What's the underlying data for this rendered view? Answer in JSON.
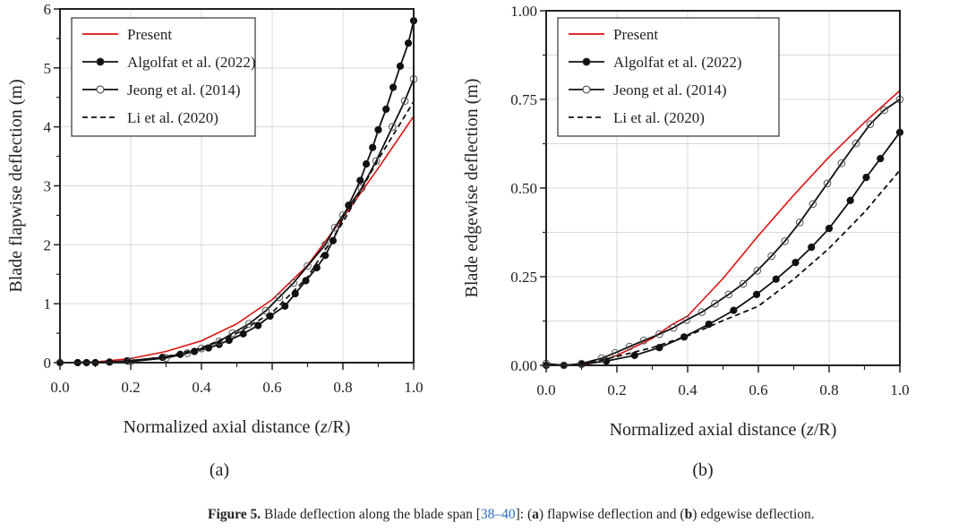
{
  "chart_data": [
    {
      "type": "line",
      "panel_label": "(a)",
      "xlabel": "Normalized axial distance (z/R)",
      "xlabel_parts": [
        "Normalized axial distance (",
        "z",
        "/R)"
      ],
      "ylabel": "Blade flapwise deflection (m)",
      "xlim": [
        0,
        1
      ],
      "ylim": [
        0,
        6
      ],
      "xticks": [
        "0.0",
        "0.2",
        "0.4",
        "0.6",
        "0.8",
        "1.0"
      ],
      "yticks": [
        "0",
        "1",
        "2",
        "3",
        "4",
        "5",
        "6"
      ],
      "grid": true,
      "legend_position": "top-left",
      "series": [
        {
          "name": "Present",
          "color": "#e01010",
          "style": "solid",
          "marker": "none",
          "x": [
            0,
            0.1,
            0.2,
            0.3,
            0.4,
            0.5,
            0.6,
            0.7,
            0.8,
            0.9,
            1.0
          ],
          "y": [
            0,
            0.01,
            0.07,
            0.19,
            0.37,
            0.66,
            1.07,
            1.65,
            2.46,
            3.3,
            4.18
          ]
        },
        {
          "name": "Algolfat  et al. (2022)",
          "color": "#111111",
          "style": "solid",
          "marker": "filled-circle",
          "x": [
            0,
            0.05,
            0.075,
            0.1,
            0.14,
            0.19,
            0.29,
            0.34,
            0.38,
            0.42,
            0.45,
            0.478,
            0.518,
            0.56,
            0.594,
            0.636,
            0.665,
            0.695,
            0.726,
            0.75,
            0.772,
            0.816,
            0.849,
            0.866,
            0.884,
            0.9,
            0.922,
            0.942,
            0.962,
            0.985,
            1.0
          ],
          "y": [
            0,
            0,
            0,
            0,
            0.01,
            0.03,
            0.09,
            0.14,
            0.19,
            0.25,
            0.31,
            0.38,
            0.49,
            0.63,
            0.79,
            0.96,
            1.17,
            1.39,
            1.61,
            1.82,
            2.07,
            2.67,
            3.09,
            3.37,
            3.65,
            3.95,
            4.3,
            4.67,
            5.03,
            5.42,
            5.8
          ]
        },
        {
          "name": "Jeong et al. (2014)",
          "color": "#111111",
          "style": "solid",
          "marker": "open-circle",
          "x": [
            0,
            0.2,
            0.3,
            0.36,
            0.4,
            0.45,
            0.488,
            0.535,
            0.582,
            0.62,
            0.66,
            0.7,
            0.75,
            0.777,
            0.8,
            0.853,
            0.894,
            0.94,
            0.975,
            1.0
          ],
          "y": [
            0,
            0.02,
            0.08,
            0.16,
            0.24,
            0.36,
            0.5,
            0.66,
            0.88,
            1.11,
            1.35,
            1.64,
            2.0,
            2.29,
            2.5,
            2.96,
            3.42,
            4.0,
            4.44,
            4.81
          ]
        },
        {
          "name": "Li et al. (2020)",
          "color": "#111111",
          "style": "dashed",
          "marker": "none",
          "x": [
            0,
            0.1,
            0.2,
            0.3,
            0.4,
            0.5,
            0.6,
            0.7,
            0.8,
            0.9,
            1.0
          ],
          "y": [
            0,
            0,
            0.03,
            0.1,
            0.25,
            0.5,
            0.85,
            1.45,
            2.38,
            3.45,
            4.43
          ]
        }
      ]
    },
    {
      "type": "line",
      "panel_label": "(b)",
      "xlabel": "Normalized axial distance (z/R)",
      "xlabel_parts": [
        "Normalized axial distance (",
        "z",
        "/R)"
      ],
      "ylabel": "Blade edgewise deflection (m)",
      "xlim": [
        0,
        1
      ],
      "ylim": [
        0,
        1
      ],
      "xticks": [
        "0.0",
        "0.2",
        "0.4",
        "0.6",
        "0.8",
        "1.0"
      ],
      "yticks": [
        "0.00",
        "0.25",
        "0.50",
        "0.75",
        "1.00"
      ],
      "grid": true,
      "legend_position": "top-left",
      "series": [
        {
          "name": "Present",
          "color": "#e01010",
          "style": "solid",
          "marker": "none",
          "x": [
            0,
            0.1,
            0.15,
            0.2,
            0.3,
            0.354,
            0.4,
            0.5,
            0.6,
            0.7,
            0.8,
            0.9,
            1.0
          ],
          "y": [
            0,
            0,
            0.01,
            0.028,
            0.076,
            0.114,
            0.139,
            0.245,
            0.366,
            0.48,
            0.588,
            0.685,
            0.775
          ]
        },
        {
          "name": "Algolfat  et al. (2022)",
          "color": "#111111",
          "style": "solid",
          "marker": "filled-circle",
          "x": [
            0,
            0.05,
            0.1,
            0.17,
            0.25,
            0.32,
            0.39,
            0.46,
            0.53,
            0.595,
            0.65,
            0.705,
            0.75,
            0.8,
            0.86,
            0.905,
            0.945,
            1.0
          ],
          "y": [
            0,
            0,
            0.003,
            0.012,
            0.028,
            0.05,
            0.08,
            0.116,
            0.155,
            0.2,
            0.243,
            0.29,
            0.333,
            0.386,
            0.465,
            0.53,
            0.583,
            0.657
          ]
        },
        {
          "name": "Jeong et al. (2014)",
          "color": "#111111",
          "style": "solid",
          "marker": "open-circle",
          "x": [
            0,
            0.05,
            0.1,
            0.157,
            0.195,
            0.236,
            0.276,
            0.32,
            0.36,
            0.397,
            0.44,
            0.477,
            0.516,
            0.557,
            0.597,
            0.637,
            0.675,
            0.717,
            0.754,
            0.795,
            0.835,
            0.876,
            0.916,
            0.956,
            1.0
          ],
          "y": [
            0.005,
            0,
            0.005,
            0.02,
            0.035,
            0.053,
            0.07,
            0.088,
            0.106,
            0.128,
            0.15,
            0.174,
            0.2,
            0.23,
            0.267,
            0.308,
            0.35,
            0.403,
            0.455,
            0.513,
            0.57,
            0.626,
            0.68,
            0.72,
            0.75
          ]
        },
        {
          "name": "Li et al. (2020)",
          "color": "#111111",
          "style": "dashed",
          "marker": "none",
          "x": [
            0,
            0.1,
            0.2,
            0.3,
            0.4,
            0.5,
            0.6,
            0.7,
            0.8,
            0.9,
            1.0
          ],
          "y": [
            0,
            0.002,
            0.025,
            0.05,
            0.083,
            0.126,
            0.167,
            0.243,
            0.33,
            0.432,
            0.55
          ]
        }
      ]
    }
  ],
  "caption": {
    "label": "Figure 5.",
    "text1": " Blade deflection along the blade span [",
    "ref": "38–40",
    "text2": "]: (",
    "a": "a",
    "text3": ") flapwise deflection and (",
    "b": "b",
    "text4": ") edgewise deflection."
  }
}
